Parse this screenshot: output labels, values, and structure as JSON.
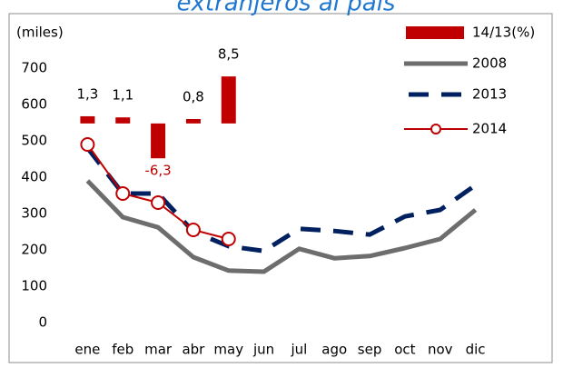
{
  "chart_data": {
    "type": "line",
    "title": "extranjeros al país",
    "y_label": "(miles)",
    "categories": [
      "ene",
      "feb",
      "mar",
      "abr",
      "may",
      "jun",
      "jul",
      "ago",
      "sep",
      "oct",
      "nov",
      "dic"
    ],
    "ylim": [
      0,
      700
    ],
    "yticks": [
      0,
      100,
      200,
      300,
      400,
      500,
      600,
      700
    ],
    "y2lim": [
      -36,
      10
    ],
    "grid": false,
    "legend": "top-right",
    "series": [
      {
        "name": "14/13(%)",
        "type": "bar",
        "axis": "y2",
        "color": "#c00000",
        "values": [
          1.3,
          1.1,
          -6.3,
          0.8,
          8.5,
          null,
          null,
          null,
          null,
          null,
          null,
          null
        ],
        "value_labels": [
          "1,3",
          "1,1",
          "-6,3",
          "0,8",
          "8,5",
          null,
          null,
          null,
          null,
          null,
          null,
          null
        ]
      },
      {
        "name": "2008",
        "type": "line",
        "style": "solid",
        "color": "#6d6d6d",
        "values": [
          390,
          290,
          262,
          180,
          143,
          140,
          203,
          177,
          183,
          205,
          230,
          310
        ]
      },
      {
        "name": "2013",
        "type": "line",
        "style": "dashed",
        "color": "#002060",
        "values": [
          480,
          355,
          355,
          250,
          210,
          197,
          258,
          252,
          242,
          292,
          310,
          378
        ]
      },
      {
        "name": "2014",
        "type": "line",
        "style": "marker",
        "color": "#c00000",
        "values": [
          490,
          355,
          330,
          255,
          230,
          null,
          null,
          null,
          null,
          null,
          null,
          null
        ]
      }
    ]
  }
}
